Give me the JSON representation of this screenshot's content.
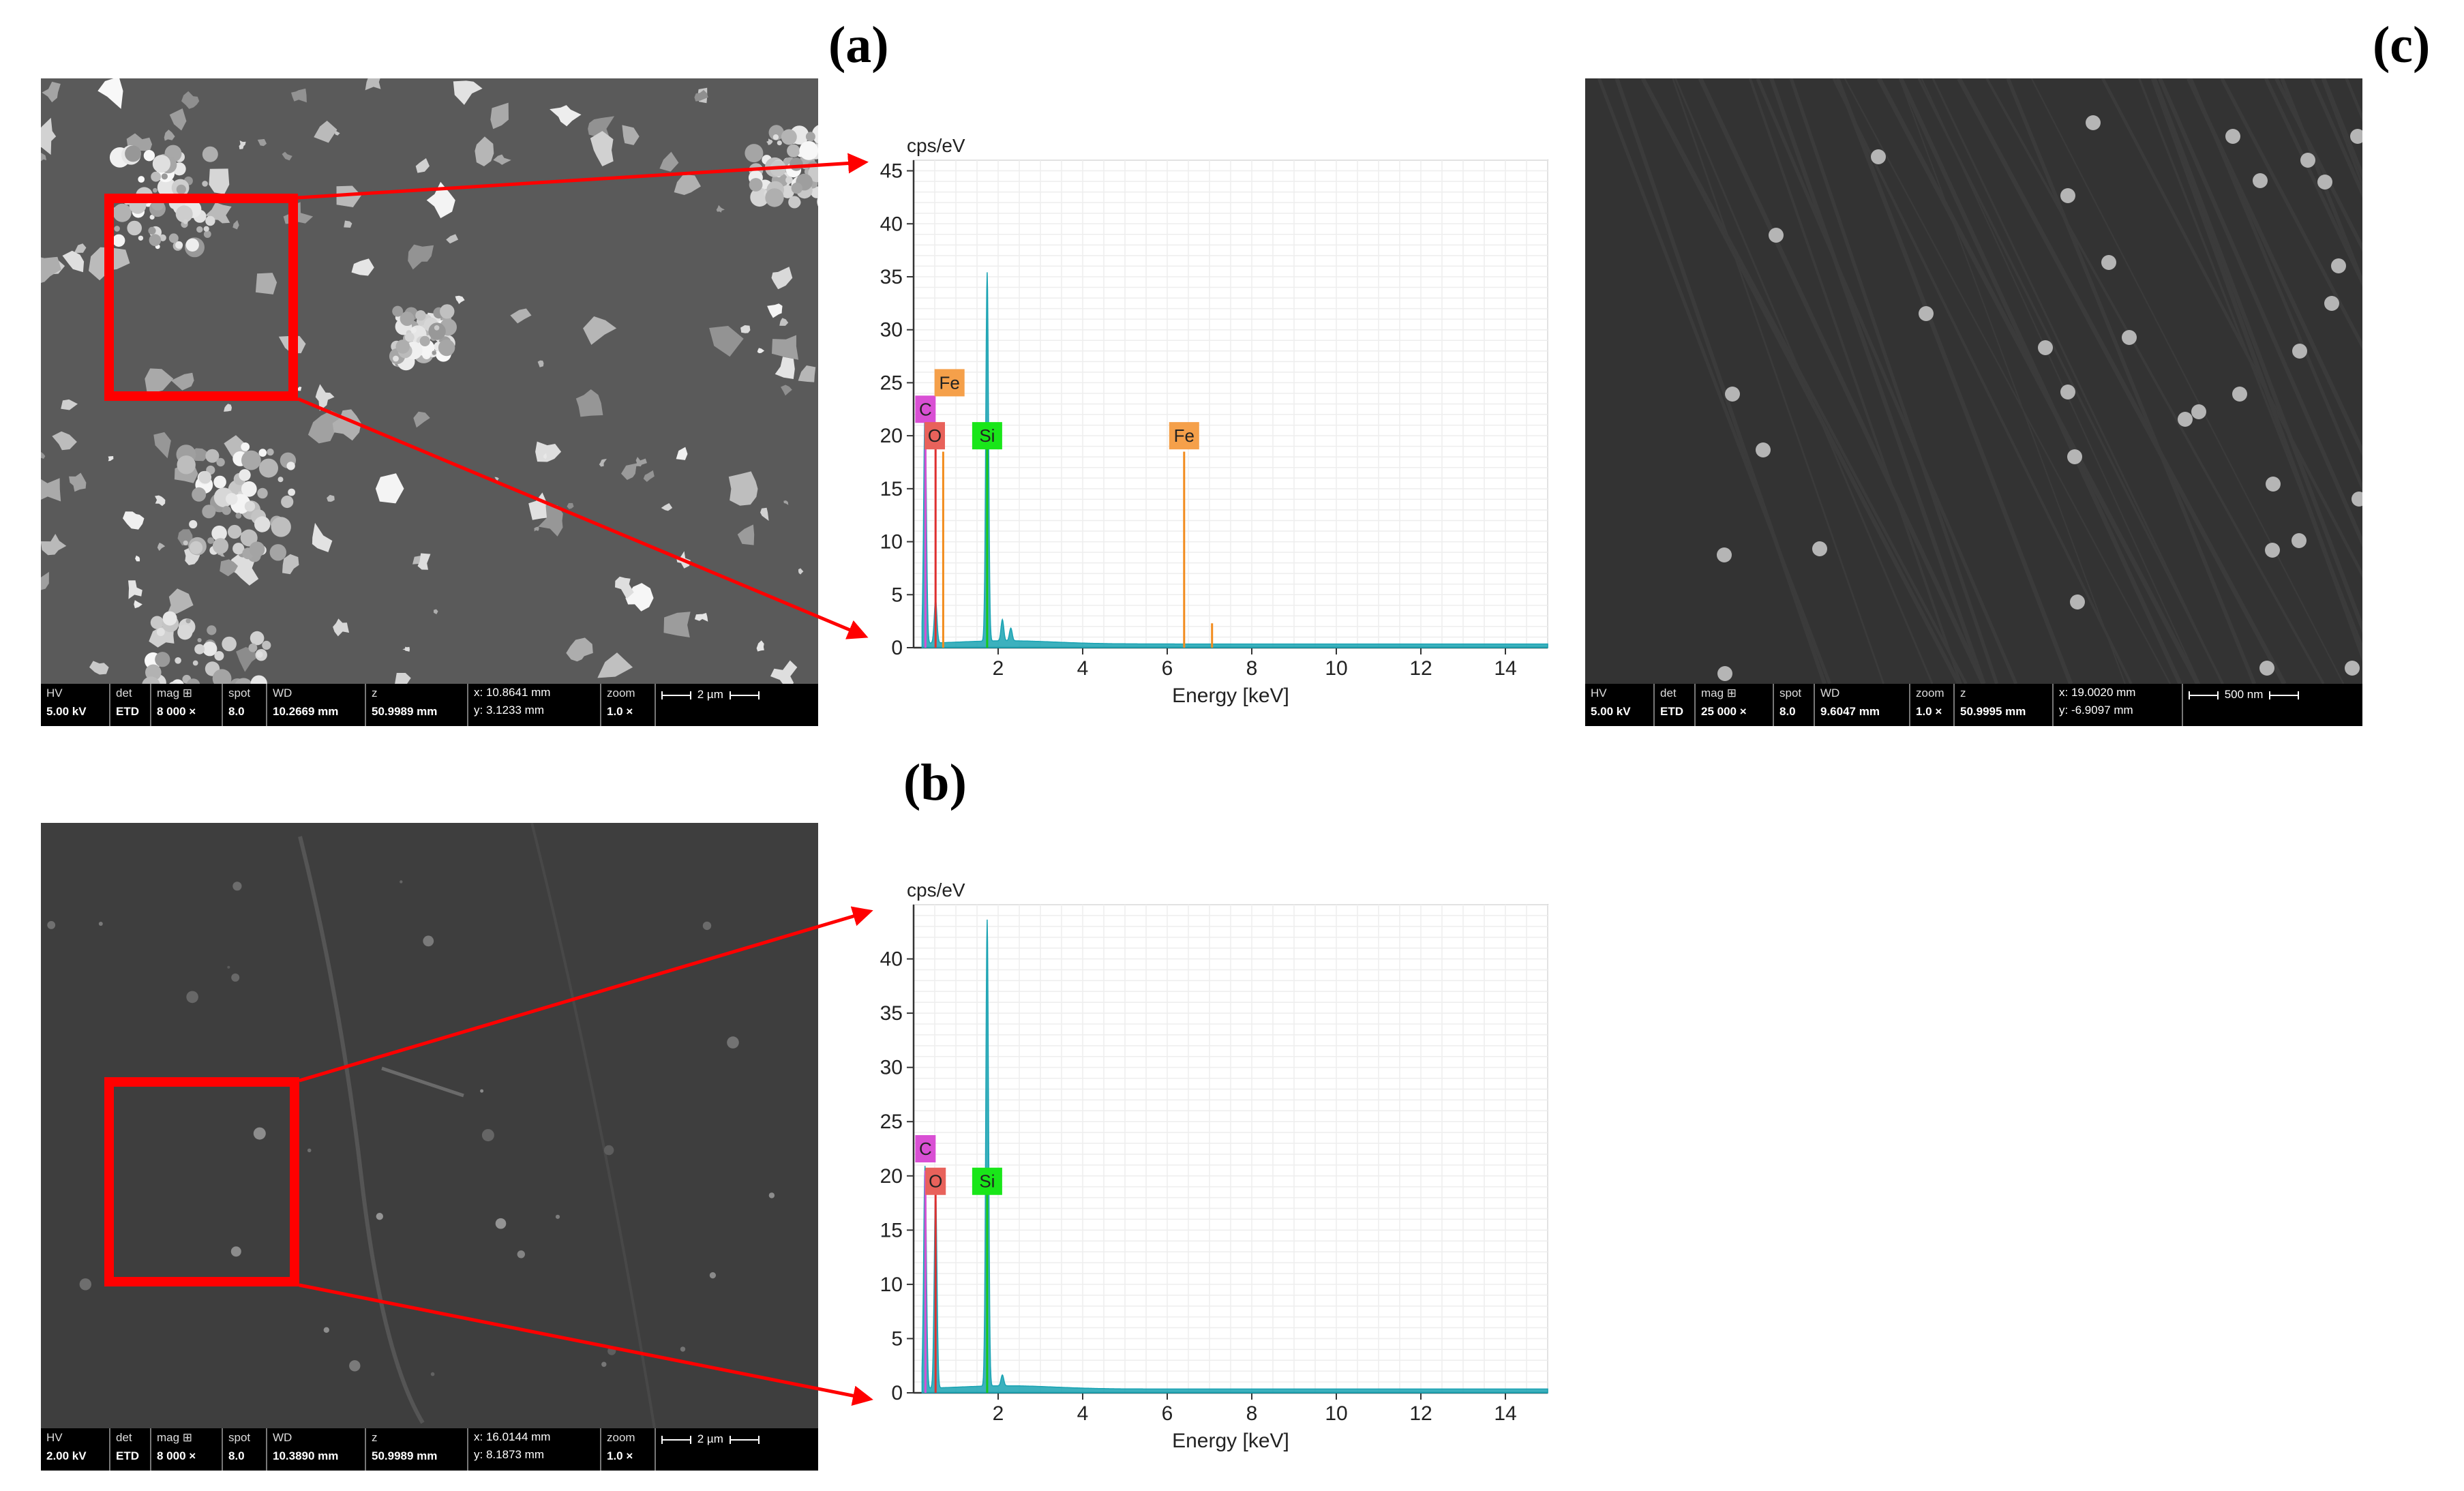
{
  "panels": [
    {
      "id": "a",
      "label": "(a)",
      "sem": {
        "hv": {
          "k": "HV",
          "v": "5.00 kV"
        },
        "det": {
          "k": "det",
          "v": "ETD"
        },
        "mag": {
          "k": "mag ⊞",
          "v": "8 000 ×"
        },
        "spot": {
          "k": "spot",
          "v": "8.0"
        },
        "wd": {
          "k": "WD",
          "v": "10.2669 mm"
        },
        "z": {
          "k": "z",
          "v": "50.9989 mm"
        },
        "x": "x: 10.8641 mm",
        "y": "y: 3.1233 mm",
        "zoom": {
          "k": "zoom",
          "v": "1.0 ×"
        },
        "scale": "2 µm"
      }
    },
    {
      "id": "b",
      "label": "(b)",
      "sem": {
        "hv": {
          "k": "HV",
          "v": "2.00 kV"
        },
        "det": {
          "k": "det",
          "v": "ETD"
        },
        "mag": {
          "k": "mag ⊞",
          "v": "8 000 ×"
        },
        "spot": {
          "k": "spot",
          "v": "8.0"
        },
        "wd": {
          "k": "WD",
          "v": "10.3890 mm"
        },
        "z": {
          "k": "z",
          "v": "50.9989 mm"
        },
        "x": "x: 16.0144 mm",
        "y": "y: 8.1873 mm",
        "zoom": {
          "k": "zoom",
          "v": "1.0 ×"
        },
        "scale": "2 µm"
      }
    },
    {
      "id": "c",
      "label": "(c)",
      "sem": {
        "hv": {
          "k": "HV",
          "v": "5.00 kV"
        },
        "det": {
          "k": "det",
          "v": "ETD"
        },
        "mag": {
          "k": "mag ⊞",
          "v": "25 000 ×"
        },
        "spot": {
          "k": "spot",
          "v": "8.0"
        },
        "wd": {
          "k": "WD",
          "v": "9.6047 mm"
        },
        "zoom": {
          "k": "zoom",
          "v": "1.0 ×"
        },
        "z": {
          "k": "z",
          "v": "50.9995 mm"
        },
        "x": "x: 19.0020 mm",
        "y": "y: -6.9097 mm",
        "scale": "500 nm"
      }
    }
  ],
  "chart_data": [
    {
      "type": "line",
      "panel": "a",
      "ylabel": "cps/eV",
      "xlabel": "Energy [keV]",
      "xlim": [
        0,
        15
      ],
      "ylim": [
        0,
        46
      ],
      "xticks": [
        2,
        4,
        6,
        8,
        10,
        12,
        14
      ],
      "yticks": [
        0,
        5,
        10,
        15,
        20,
        25,
        30,
        35,
        40,
        45
      ],
      "colors": {
        "spectrum": "#1aa3b3",
        "fe": "#f28c1e",
        "o": "#e03131",
        "c": "#d94fd4",
        "si": "#19c919"
      },
      "spectrum": [
        {
          "x": 0.27,
          "y": 22
        },
        {
          "x": 0.52,
          "y": 4
        },
        {
          "x": 1.74,
          "y": 34.8
        },
        {
          "x": 2.1,
          "y": 2
        },
        {
          "x": 2.3,
          "y": 1.2
        }
      ],
      "element_lines": [
        {
          "element": "C",
          "x": 0.28,
          "y": 22,
          "color": "#d94fd4"
        },
        {
          "element": "O",
          "x": 0.52,
          "y": 19,
          "color": "#e03131"
        },
        {
          "element": "Fe",
          "x": 0.7,
          "y": 18.5,
          "color": "#f28c1e"
        },
        {
          "element": "Si",
          "x": 1.74,
          "y": 19,
          "color": "#19c919"
        },
        {
          "element": "Fe",
          "x": 6.4,
          "y": 18.5,
          "color": "#f28c1e"
        },
        {
          "element": "Fe",
          "x": 7.06,
          "y": 2.3,
          "color": "#f28c1e"
        }
      ],
      "labels": [
        {
          "text": "C",
          "x": 0.28,
          "y": 22.5,
          "color": "#d94fd4"
        },
        {
          "text": "O",
          "x": 0.5,
          "y": 20,
          "color": "#e8625b"
        },
        {
          "text": "Fe",
          "x": 0.85,
          "y": 25,
          "color": "#f5a04a"
        },
        {
          "text": "Si",
          "x": 1.74,
          "y": 20,
          "color": "#19e619"
        },
        {
          "text": "Fe",
          "x": 6.4,
          "y": 20,
          "color": "#f5a04a"
        }
      ]
    },
    {
      "type": "line",
      "panel": "b",
      "ylabel": "cps/eV",
      "xlabel": "Energy [keV]",
      "xlim": [
        0,
        15
      ],
      "ylim": [
        0,
        45
      ],
      "xticks": [
        2,
        4,
        6,
        8,
        10,
        12,
        14
      ],
      "yticks": [
        0,
        5,
        10,
        15,
        20,
        25,
        30,
        35,
        40
      ],
      "colors": {
        "spectrum": "#1aa3b3",
        "o": "#e03131",
        "c": "#d94fd4",
        "si": "#19c919"
      },
      "spectrum": [
        {
          "x": 0.27,
          "y": 20.5
        },
        {
          "x": 0.52,
          "y": 18
        },
        {
          "x": 1.74,
          "y": 43
        },
        {
          "x": 2.1,
          "y": 1
        }
      ],
      "element_lines": [
        {
          "element": "C",
          "x": 0.28,
          "y": 20.5,
          "color": "#d94fd4"
        },
        {
          "element": "O",
          "x": 0.52,
          "y": 18.5,
          "color": "#e03131"
        },
        {
          "element": "Si",
          "x": 1.74,
          "y": 18.5,
          "color": "#19c919"
        }
      ],
      "labels": [
        {
          "text": "C",
          "x": 0.28,
          "y": 22.5,
          "color": "#d94fd4"
        },
        {
          "text": "O",
          "x": 0.52,
          "y": 19.5,
          "color": "#e8625b"
        },
        {
          "text": "Si",
          "x": 1.74,
          "y": 19.5,
          "color": "#19e619"
        }
      ]
    }
  ]
}
